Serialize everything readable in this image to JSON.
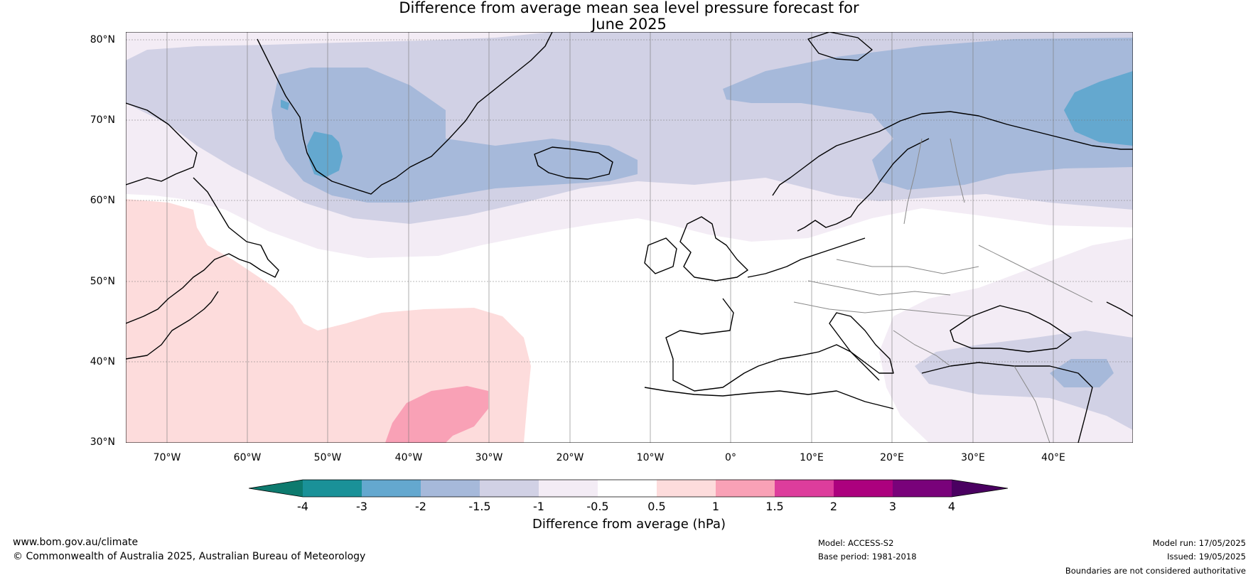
{
  "title": {
    "line1": "Difference from average mean sea level pressure forecast for",
    "line2": "June 2025"
  },
  "map": {
    "lat_labels": [
      "80°N",
      "70°N",
      "60°N",
      "50°N",
      "40°N",
      "30°N"
    ],
    "lon_labels": [
      "70°W",
      "60°W",
      "50°W",
      "40°W",
      "30°W",
      "20°W",
      "10°W",
      "0°",
      "10°E",
      "20°E",
      "30°E",
      "40°E"
    ],
    "colors": {
      "le_m4": "#0d7a6e",
      "m4_m3": "#1a9198",
      "m3_m2": "#64a8cf",
      "m2_m15": "#a6b9da",
      "m15_m1": "#d1d1e5",
      "m1_m05": "#f3ecf5",
      "m05_05": "#ffffff",
      "p05_1": "#fddcdc",
      "p1_15": "#f9a1b6",
      "p15_2": "#dd3d9c",
      "p2_3": "#ac017e",
      "p3_4": "#79027a",
      "ge_4": "#4a0061"
    }
  },
  "colorbar": {
    "ticks": [
      "-4",
      "-3",
      "-2",
      "-1.5",
      "-1",
      "-0.5",
      "0.5",
      "1",
      "1.5",
      "2",
      "3",
      "4"
    ],
    "title": "Difference from average (hPa)"
  },
  "footer": {
    "website": "www.bom.gov.au/climate",
    "copyright": "© Commonwealth of Australia 2025, Australian Bureau of Meteorology",
    "model": "Model: ACCESS-S2",
    "base_period": "Base period: 1981-2018",
    "model_run": "Model run: 17/05/2025",
    "issued": "Issued: 19/05/2025",
    "disclaimer": "Boundaries are not considered authoritative"
  }
}
